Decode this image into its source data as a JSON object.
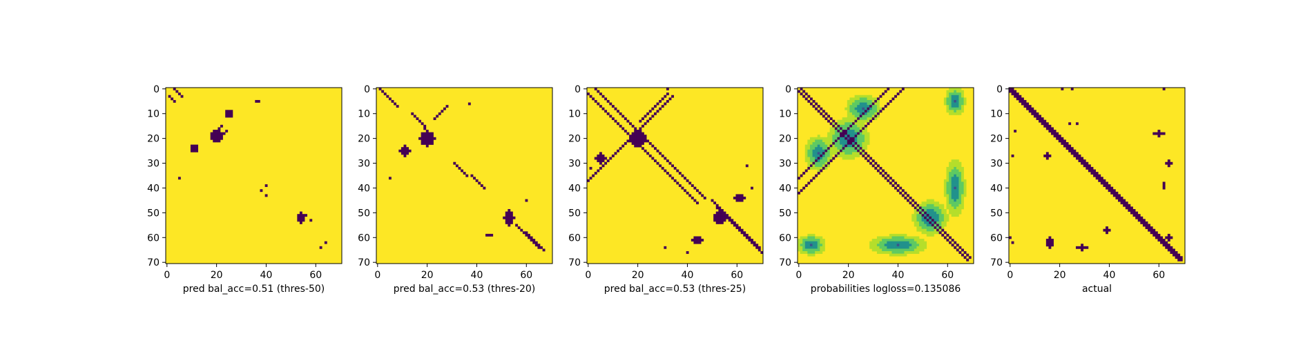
{
  "figure": {
    "colors": {
      "background": "#fde725",
      "foreground": "#440154",
      "mid": "#21918c",
      "light": "#5ec962"
    },
    "x_ticks": [
      "0",
      "20",
      "40",
      "60"
    ],
    "y_ticks": [
      "0",
      "10",
      "20",
      "30",
      "40",
      "50",
      "60",
      "70"
    ]
  },
  "chart_data": [
    {
      "type": "heatmap",
      "xlabel": "pred bal_acc=0.51 (thres-50)",
      "xlim": [
        0,
        70
      ],
      "ylim": [
        70,
        0
      ],
      "grid": false,
      "binary": true,
      "diagonals": [
        {
          "r0": 3,
          "c0": 1,
          "len": 3
        },
        {
          "r0": 0,
          "c0": 3,
          "len": 4
        }
      ],
      "antidiagonals": [
        {
          "r0": 17,
          "c0": 24,
          "len": 4
        },
        {
          "r0": 15,
          "c0": 22,
          "len": 5
        }
      ],
      "blobs": [
        {
          "r": 10,
          "c": 25,
          "rr": 1.6,
          "rc": 1.6
        },
        {
          "r": 24,
          "c": 11,
          "rr": 1.8,
          "rc": 1.5
        },
        {
          "r": 19,
          "c": 20,
          "rr": 2.5,
          "rc": 2.5
        },
        {
          "r": 52,
          "c": 54,
          "rr": 2.5,
          "rc": 1.2
        }
      ],
      "dots": [
        [
          5,
          36
        ],
        [
          5,
          37
        ],
        [
          36,
          5
        ],
        [
          39,
          40
        ],
        [
          41,
          38
        ],
        [
          43,
          40
        ],
        [
          51,
          56
        ],
        [
          53,
          58
        ],
        [
          62,
          64
        ],
        [
          64,
          62
        ]
      ]
    },
    {
      "type": "heatmap",
      "xlabel": "pred bal_acc=0.53 (thres-20)",
      "xlim": [
        0,
        70
      ],
      "ylim": [
        70,
        0
      ],
      "grid": false,
      "binary": true,
      "diagonals": [
        {
          "r0": 0,
          "c0": 1,
          "len": 8
        },
        {
          "r0": 10,
          "c0": 14,
          "len": 6
        },
        {
          "r0": 30,
          "c0": 31,
          "len": 6
        },
        {
          "r0": 35,
          "c0": 38,
          "len": 6
        },
        {
          "r0": 55,
          "c0": 56,
          "len": 10
        },
        {
          "r0": 58,
          "c0": 60,
          "len": 8
        }
      ],
      "antidiagonals": [
        {
          "r0": 7,
          "c0": 28,
          "len": 6
        }
      ],
      "blobs": [
        {
          "r": 20,
          "c": 20,
          "rr": 3,
          "rc": 3
        },
        {
          "r": 25,
          "c": 11,
          "rr": 2,
          "rc": 2
        },
        {
          "r": 52,
          "c": 53,
          "rr": 3,
          "rc": 2
        },
        {
          "r": 59,
          "c": 45,
          "rr": 0.8,
          "rc": 1
        }
      ],
      "dots": [
        [
          6,
          37
        ],
        [
          36,
          5
        ],
        [
          45,
          60
        ],
        [
          16,
          19
        ]
      ]
    },
    {
      "type": "heatmap",
      "xlabel": "pred bal_acc=0.53 (thres-25)",
      "xlim": [
        0,
        70
      ],
      "ylim": [
        70,
        0
      ],
      "grid": false,
      "binary": true,
      "diagonals": [
        {
          "r0": 2,
          "c0": 0,
          "len": 45
        },
        {
          "r0": 0,
          "c0": 3,
          "len": 45
        },
        {
          "r0": 45,
          "c0": 50,
          "len": 20
        },
        {
          "r0": 48,
          "c0": 52,
          "len": 20
        }
      ],
      "antidiagonals": [
        {
          "r0": 3,
          "c0": 34,
          "len": 36
        },
        {
          "r0": 2,
          "c0": 32,
          "len": 12
        }
      ],
      "blobs": [
        {
          "r": 20,
          "c": 20,
          "rr": 3.5,
          "rc": 3.5
        },
        {
          "r": 28,
          "c": 5,
          "rr": 2,
          "rc": 2
        },
        {
          "r": 52,
          "c": 53,
          "rr": 2.5,
          "rc": 2.5
        },
        {
          "r": 44,
          "c": 61,
          "rr": 1.5,
          "rc": 2
        },
        {
          "r": 61,
          "c": 44,
          "rr": 1.5,
          "rc": 2
        },
        {
          "r": 0,
          "c": 32,
          "rr": 0.8,
          "rc": 0.8
        },
        {
          "r": 32,
          "c": 1,
          "rr": 0.8,
          "rc": 0.8
        }
      ],
      "dots": [
        [
          31,
          64
        ],
        [
          64,
          31
        ],
        [
          40,
          66
        ],
        [
          66,
          40
        ]
      ]
    },
    {
      "type": "heatmap",
      "xlabel": "probabilities logloss=0.135086",
      "xlim": [
        0,
        70
      ],
      "ylim": [
        70,
        0
      ],
      "grid": false,
      "binary": false,
      "diagonals": [
        {
          "r0": 1,
          "c0": 0,
          "len": 69
        },
        {
          "r0": 0,
          "c0": 1,
          "len": 69
        }
      ],
      "antidiagonals": [
        {
          "r0": 0,
          "c0": 42,
          "len": 43
        },
        {
          "r0": 0,
          "c0": 36,
          "len": 37
        }
      ],
      "blobs": [
        {
          "r": 20,
          "c": 20,
          "rr": 6,
          "rc": 6
        },
        {
          "r": 52,
          "c": 53,
          "rr": 5,
          "rc": 5
        },
        {
          "r": 26,
          "c": 8,
          "rr": 5,
          "rc": 4
        },
        {
          "r": 8,
          "c": 26,
          "rr": 4,
          "rc": 5
        },
        {
          "r": 63,
          "c": 40,
          "rr": 3,
          "rc": 8
        },
        {
          "r": 40,
          "c": 63,
          "rr": 8,
          "rc": 3
        },
        {
          "r": 5,
          "c": 63,
          "rr": 4,
          "rc": 3
        },
        {
          "r": 63,
          "c": 5,
          "rr": 3,
          "rc": 4
        }
      ],
      "dots": []
    },
    {
      "type": "heatmap",
      "xlabel": "actual",
      "xlim": [
        0,
        70
      ],
      "ylim": [
        70,
        0
      ],
      "grid": false,
      "binary": true,
      "diagonals": [
        {
          "r0": 0,
          "c0": 0,
          "len": 70
        },
        {
          "r0": 0,
          "c0": 1,
          "len": 69
        },
        {
          "r0": 1,
          "c0": 0,
          "len": 69
        }
      ],
      "antidiagonals": [],
      "blobs": [
        {
          "r": 18,
          "c": 60,
          "rr": 1,
          "rc": 2
        },
        {
          "r": 30,
          "c": 64,
          "rr": 1.5,
          "rc": 1.2
        },
        {
          "r": 39,
          "c": 62,
          "rr": 1,
          "rc": 0.6
        },
        {
          "r": 57,
          "c": 39,
          "rr": 1,
          "rc": 1
        },
        {
          "r": 62,
          "c": 16,
          "rr": 2,
          "rc": 1.2
        },
        {
          "r": 64,
          "c": 29,
          "rr": 1,
          "rc": 2
        },
        {
          "r": 60,
          "c": 64,
          "rr": 1.5,
          "rc": 1
        },
        {
          "r": 27,
          "c": 15,
          "rr": 1,
          "rc": 1
        }
      ],
      "dots": [
        [
          0,
          21
        ],
        [
          0,
          62
        ],
        [
          0,
          25
        ],
        [
          27,
          1
        ],
        [
          14,
          24
        ],
        [
          17,
          2
        ],
        [
          60,
          0
        ],
        [
          14,
          27
        ],
        [
          62,
          1
        ]
      ]
    }
  ]
}
